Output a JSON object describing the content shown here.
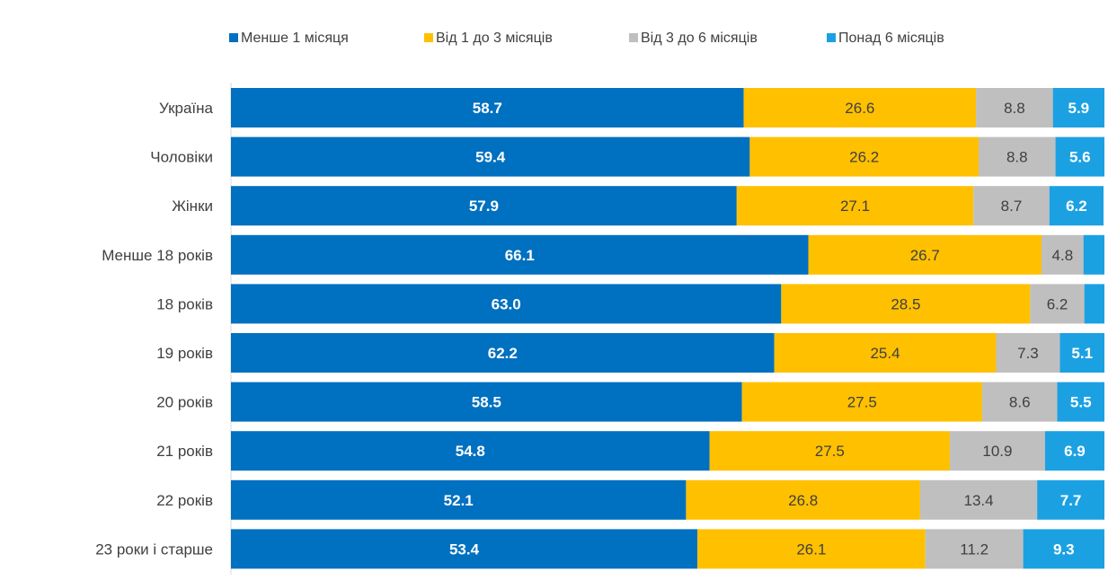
{
  "chart_data": {
    "type": "bar",
    "orientation": "horizontal",
    "stacked": true,
    "title": "",
    "xlabel": "",
    "ylabel": "",
    "xlim": [
      0,
      100
    ],
    "grid": false,
    "legend_position": "top",
    "categories": [
      "Україна",
      "Чоловіки",
      "Жінки",
      "Менше 18 років",
      "18 років",
      "19 років",
      "20 років",
      "21 років",
      "22 років",
      "23 роки і старше"
    ],
    "series": [
      {
        "name": "Менше 1 місяця",
        "color": "#0070C0",
        "label_color": "#ffffff",
        "values": [
          58.7,
          59.4,
          57.9,
          66.1,
          63.0,
          62.2,
          58.5,
          54.8,
          52.1,
          53.4
        ],
        "labels": [
          "58.7",
          "59.4",
          "57.9",
          "66.1",
          "63.0",
          "62.2",
          "58.5",
          "54.8",
          "52.1",
          "53.4"
        ]
      },
      {
        "name": "Від 1 до 3 місяців",
        "color": "#FFC000",
        "label_color": "#404040",
        "values": [
          26.6,
          26.2,
          27.1,
          26.7,
          28.5,
          25.4,
          27.5,
          27.5,
          26.8,
          26.1
        ],
        "labels": [
          "26.6",
          "26.2",
          "27.1",
          "26.7",
          "28.5",
          "25.4",
          "27.5",
          "27.5",
          "26.8",
          "26.1"
        ]
      },
      {
        "name": "Від 3 до 6 місяців",
        "color": "#BFBFBF",
        "label_color": "#404040",
        "values": [
          8.8,
          8.8,
          8.7,
          4.8,
          6.2,
          7.3,
          8.6,
          10.9,
          13.4,
          11.2
        ],
        "labels": [
          "8.8",
          "8.8",
          "8.7",
          "4.8",
          "6.2",
          "7.3",
          "8.6",
          "10.9",
          "13.4",
          "11.2"
        ]
      },
      {
        "name": "Понад 6 місяців",
        "color": "#1BA1E2",
        "label_color": "#ffffff",
        "values": [
          5.9,
          5.6,
          6.2,
          2.4,
          2.3,
          5.1,
          5.5,
          6.9,
          7.7,
          9.3
        ],
        "labels": [
          "5.9",
          "5.6",
          "6.2",
          "",
          "",
          "5.1",
          "5.5",
          "6.9",
          "7.7",
          "9.3"
        ]
      }
    ]
  }
}
